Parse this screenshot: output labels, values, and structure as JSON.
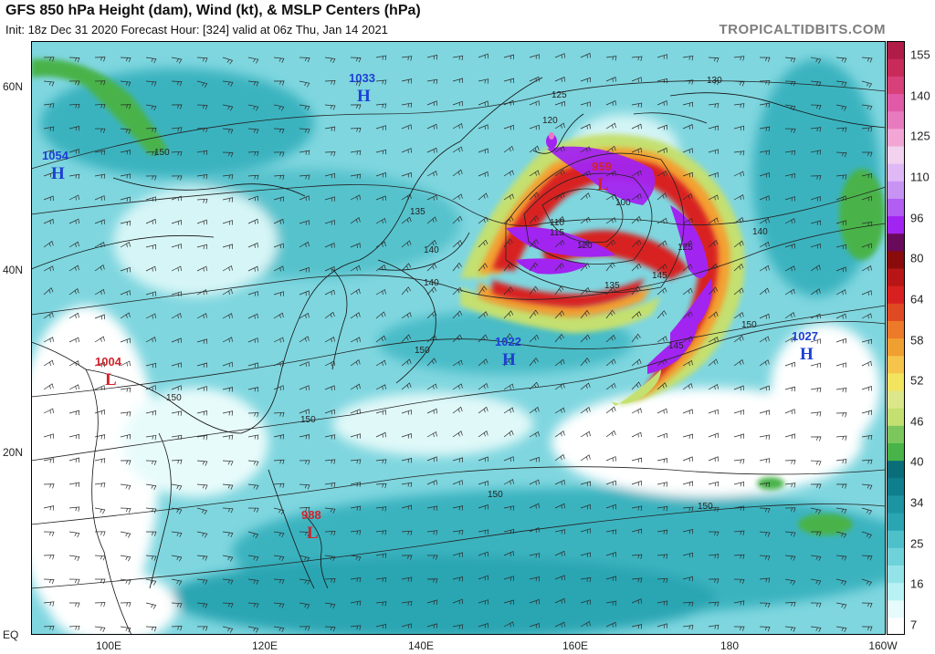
{
  "header": {
    "title": "GFS 850 hPa Height (dam), Wind (kt), & MSLP Centers (hPa)",
    "subtitle": "Init: 18z Dec 31 2020   Forecast Hour: [324]   valid at 06z Thu, Jan 14 2021",
    "brand": "TROPICALTIDBITS.COM"
  },
  "axes": {
    "lat_labels": [
      "60N",
      "40N",
      "20N",
      "EQ"
    ],
    "lon_labels": [
      "100E",
      "120E",
      "140E",
      "160E",
      "180",
      "160W"
    ]
  },
  "colorbar": {
    "labels": [
      "155",
      "140",
      "125",
      "110",
      "96",
      "80",
      "64",
      "58",
      "52",
      "46",
      "40",
      "34",
      "25",
      "16",
      "7"
    ],
    "colors": {
      "light_cyan": "#b8f2f4",
      "teal": "#2aa5b2",
      "dark_teal": "#0f7f8d",
      "green": "#48b348",
      "yellow_green": "#c4e070",
      "yellow": "#f3e45e",
      "orange": "#f0a030",
      "red": "#d82020",
      "dark_red": "#8a0b0b",
      "purple": "#a224f0",
      "pink": "#e87ac0"
    }
  },
  "pressure_centers": [
    {
      "type": "H",
      "value": "1033",
      "color": "#1d3fd4"
    },
    {
      "type": "H",
      "value": "1054",
      "color": "#1d3fd4"
    },
    {
      "type": "L",
      "value": "1004",
      "color": "#d0242c"
    },
    {
      "type": "H",
      "value": "1022",
      "color": "#1d3fd4"
    },
    {
      "type": "H",
      "value": "1027",
      "color": "#1d3fd4"
    },
    {
      "type": "L",
      "value": "959",
      "color": "#d0242c"
    },
    {
      "type": "L",
      "value": "988",
      "color": "#d0242c"
    }
  ],
  "contour_labels": [
    "125",
    "130",
    "120",
    "150",
    "135",
    "140",
    "140",
    "120",
    "115",
    "110",
    "100",
    "125",
    "135",
    "140",
    "145",
    "150",
    "150",
    "150",
    "150",
    "150",
    "145",
    "150"
  ]
}
